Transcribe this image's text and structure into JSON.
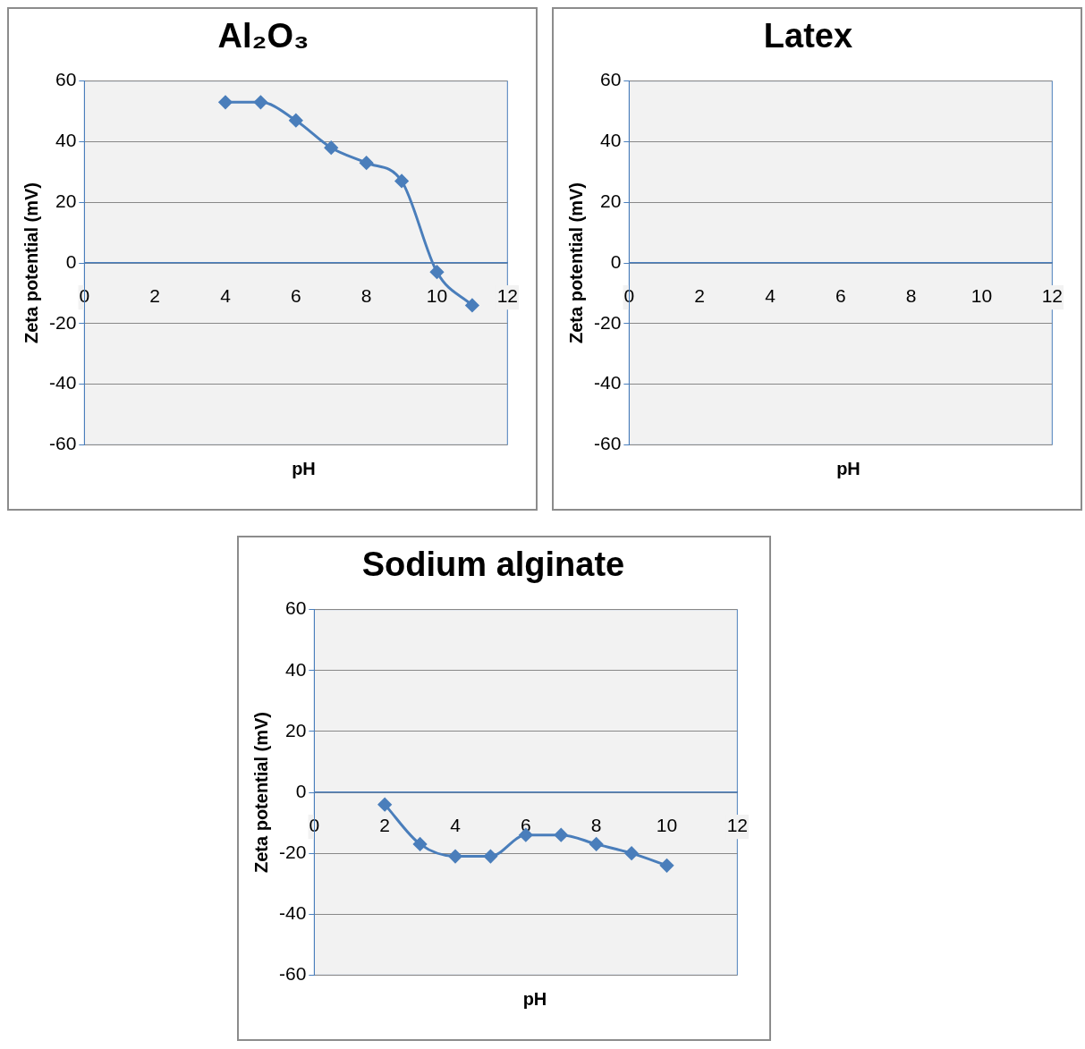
{
  "chart_data": [
    {
      "type": "line",
      "title": "Al₂O₃",
      "xlabel": "pH",
      "ylabel": "Zeta potential (mV)",
      "xlim": [
        0,
        12
      ],
      "xticks": [
        0,
        2,
        4,
        6,
        8,
        10,
        12
      ],
      "ylim": [
        -60,
        60
      ],
      "yticks": [
        -60,
        -40,
        -20,
        0,
        20,
        40,
        60
      ],
      "grid": "y",
      "marker": "diamond",
      "series": [
        {
          "color": "#4a7ebb",
          "x": [
            4,
            5,
            6,
            7,
            8,
            9,
            10,
            11
          ],
          "values": [
            53,
            53,
            47,
            38,
            33,
            27,
            -3,
            -14
          ]
        }
      ]
    },
    {
      "type": "line",
      "title": "Latex",
      "xlabel": "pH",
      "ylabel": "Zeta potential (mV)",
      "xlim": [
        0,
        12
      ],
      "xticks": [
        0,
        2,
        4,
        6,
        8,
        10,
        12
      ],
      "ylim": [
        -60,
        60
      ],
      "yticks": [
        -60,
        -40,
        -20,
        0,
        20,
        40,
        60
      ],
      "grid": "y"
    },
    {
      "type": "line",
      "title": "Sodium alginate",
      "xlabel": "pH",
      "ylabel": "Zeta potential (mV)",
      "xlim": [
        0,
        12
      ],
      "xticks": [
        0,
        2,
        4,
        6,
        8,
        10,
        12
      ],
      "ylim": [
        -60,
        60
      ],
      "yticks": [
        -60,
        -40,
        -20,
        0,
        20,
        40,
        60
      ],
      "grid": "y",
      "marker": "diamond",
      "series": [
        {
          "color": "#4a7ebb",
          "x": [
            2,
            3,
            4,
            5,
            6,
            7,
            8,
            9,
            10
          ],
          "values": [
            -4,
            -17,
            -21,
            -21,
            -14,
            -14,
            -17,
            -20,
            -24
          ]
        }
      ]
    }
  ]
}
